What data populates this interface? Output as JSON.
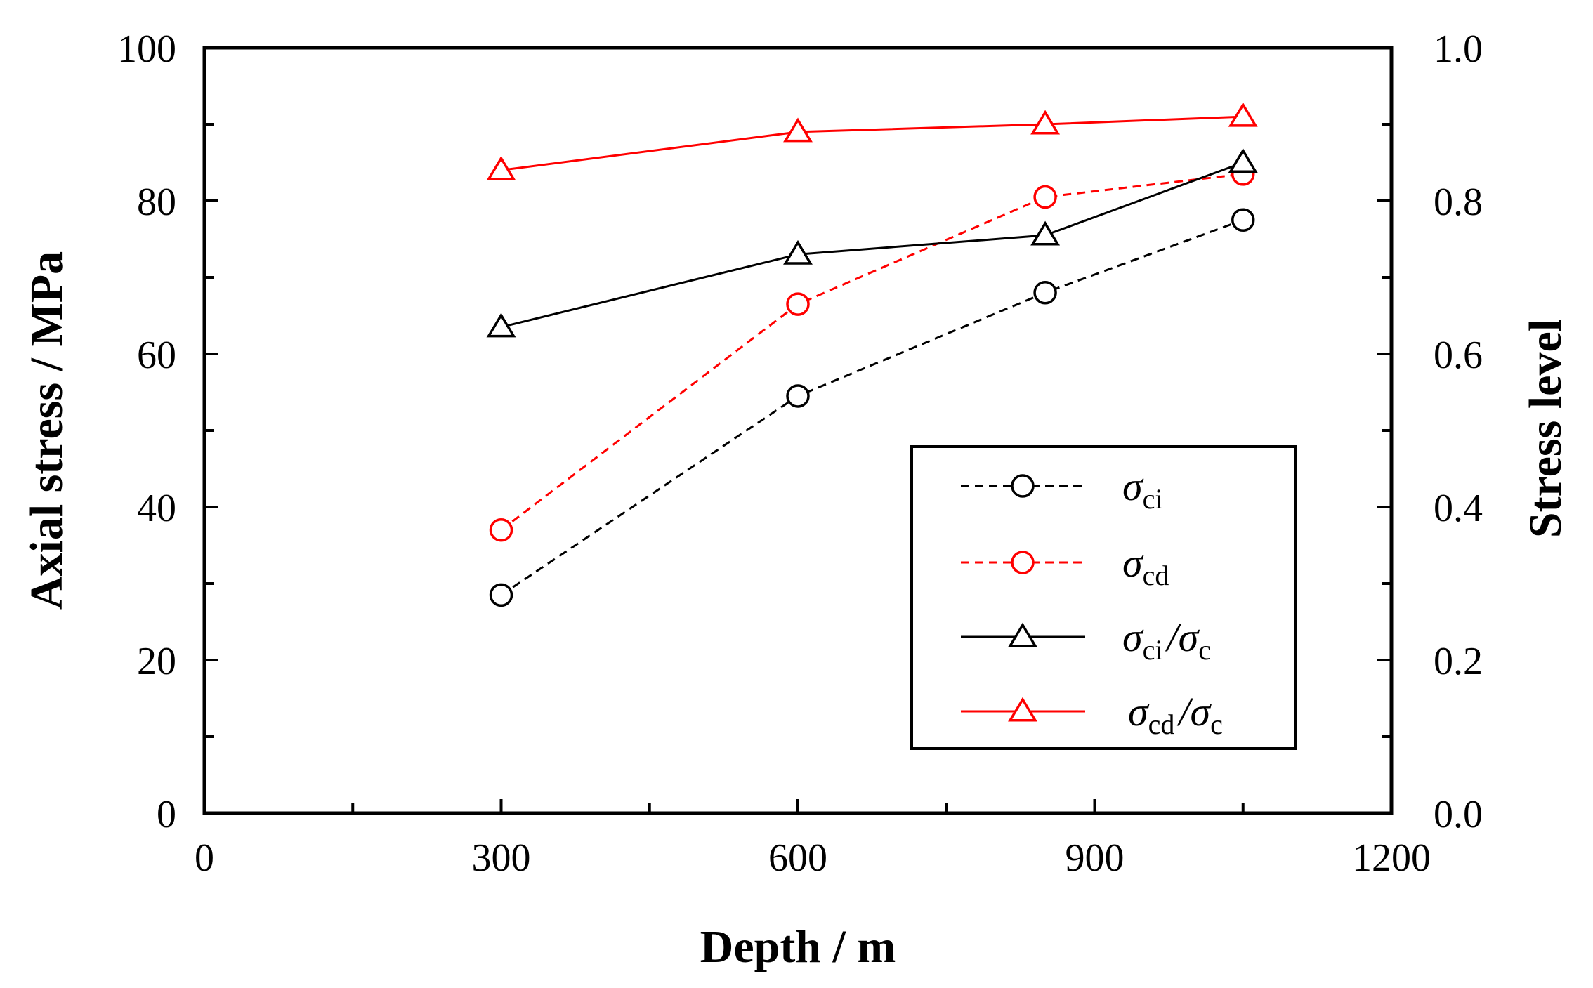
{
  "chart_data": {
    "type": "line",
    "title": "",
    "xlabel": "Depth / m",
    "ylabel_left": "Axial stress / MPa",
    "ylabel_right": "Stress level",
    "xlim": [
      0,
      1200
    ],
    "ylim_left": [
      0,
      100
    ],
    "ylim_right": [
      0.0,
      1.0
    ],
    "x_ticks": [
      0,
      300,
      600,
      900,
      1200
    ],
    "x_tick_labels": [
      "0",
      "300",
      "600",
      "900",
      "1200"
    ],
    "y_left_ticks": [
      0,
      20,
      40,
      60,
      80,
      100
    ],
    "y_left_tick_labels": [
      "0",
      "20",
      "40",
      "60",
      "80",
      "100"
    ],
    "y_right_ticks": [
      0.0,
      0.2,
      0.4,
      0.6,
      0.8,
      1.0
    ],
    "y_right_tick_labels": [
      "0.0",
      "0.2",
      "0.4",
      "0.6",
      "0.8",
      "1.0"
    ],
    "grid": false,
    "legend_position": "lower-right",
    "series": [
      {
        "id": "sigma-ci",
        "name": "σci",
        "legend_symbol": "σ",
        "legend_sub": "ci",
        "legend_rest": "",
        "axis": "left",
        "color": "#000000",
        "dashed": true,
        "marker": "circle",
        "x": [
          300,
          600,
          850,
          1050
        ],
        "values": [
          28.5,
          54.5,
          68,
          77.5
        ]
      },
      {
        "id": "sigma-cd",
        "name": "σcd",
        "legend_symbol": "σ",
        "legend_sub": "cd",
        "legend_rest": "",
        "axis": "left",
        "color": "#ff0000",
        "dashed": true,
        "marker": "circle",
        "x": [
          300,
          600,
          850,
          1050
        ],
        "values": [
          37,
          66.5,
          80.5,
          83.5
        ]
      },
      {
        "id": "sigma-ci-ratio",
        "name": "σci/σc",
        "legend_symbol": "σ",
        "legend_sub": "ci",
        "legend_rest": "/σ",
        "legend_sub2": "c",
        "axis": "right",
        "color": "#000000",
        "dashed": false,
        "marker": "triangle",
        "x": [
          300,
          600,
          850,
          1050
        ],
        "values": [
          0.635,
          0.73,
          0.755,
          0.85
        ]
      },
      {
        "id": "sigma-cd-ratio",
        "name": "σcd/σc",
        "legend_symbol": "σ",
        "legend_sub": "cd",
        "legend_rest": "/σ",
        "legend_sub2": "c",
        "axis": "right",
        "color": "#ff0000",
        "dashed": false,
        "marker": "triangle",
        "x": [
          300,
          600,
          850,
          1050
        ],
        "values": [
          0.84,
          0.89,
          0.9,
          0.91
        ]
      }
    ]
  }
}
